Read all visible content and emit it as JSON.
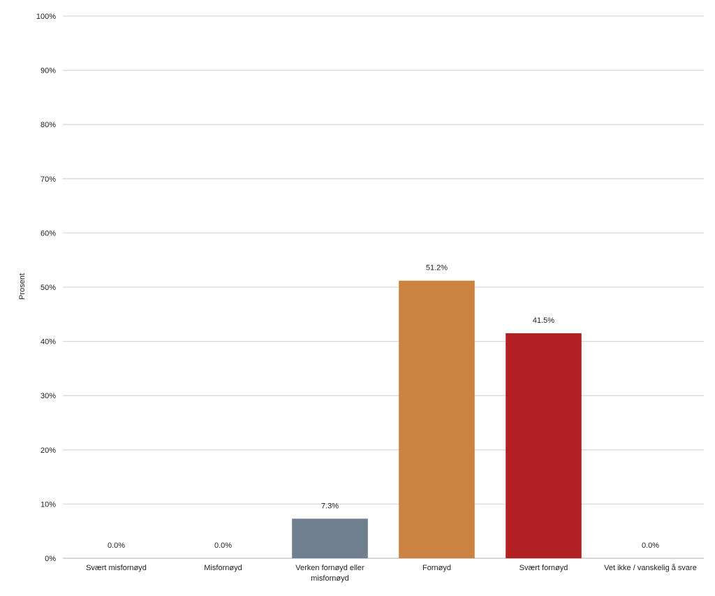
{
  "chart_data": {
    "type": "bar",
    "title": "",
    "xlabel": "",
    "ylabel": "Prosent",
    "ylim": [
      0,
      100
    ],
    "y_ticks": [
      "0%",
      "10%",
      "20%",
      "30%",
      "40%",
      "50%",
      "60%",
      "70%",
      "80%",
      "90%",
      "100%"
    ],
    "grid": true,
    "categories": [
      [
        "Svært misfornøyd"
      ],
      [
        "Misfornøyd"
      ],
      [
        "Verken fornøyd eller",
        "misfornøyd"
      ],
      [
        "Fornøyd"
      ],
      [
        "Svært fornøyd"
      ],
      [
        "Vet ikke / vanskelig å svare"
      ]
    ],
    "values": [
      0.0,
      0.0,
      7.3,
      51.2,
      41.5,
      0.0
    ],
    "data_labels": [
      "0.0%",
      "0.0%",
      "7.3%",
      "51.2%",
      "41.5%",
      "0.0%"
    ],
    "colors": [
      "#6f7f8f",
      "#6f7f8f",
      "#6f7f8f",
      "#cc8240",
      "#b22024",
      "#6f7f8f"
    ],
    "gridline_color": "#d9d9d9",
    "axis_color": "#bfbfbf"
  }
}
